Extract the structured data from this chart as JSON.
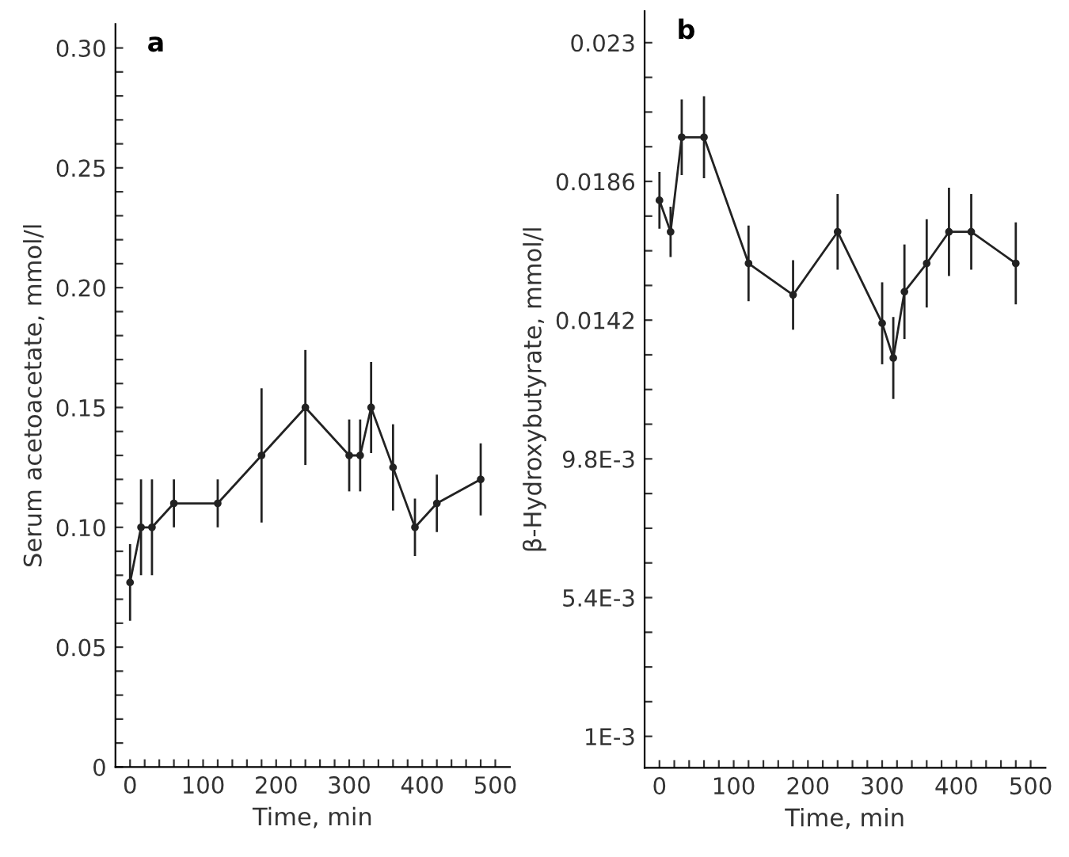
{
  "chart_data": [
    {
      "type": "line",
      "title": "a",
      "xlabel": "Time, min",
      "ylabel": "Serum acetoacetate, mmol/l",
      "marker": "circle",
      "line_style": "solid",
      "grid": false,
      "legend": false,
      "x": [
        0,
        15,
        30,
        60,
        120,
        180,
        240,
        300,
        315,
        330,
        360,
        390,
        420,
        480
      ],
      "series": [
        {
          "color": "#222222",
          "values": [
            0.077,
            0.1,
            0.1,
            0.11,
            0.11,
            0.13,
            0.15,
            0.13,
            0.13,
            0.15,
            0.125,
            0.1,
            0.11,
            0.12
          ],
          "errors": [
            0.016,
            0.02,
            0.02,
            0.01,
            0.01,
            0.028,
            0.024,
            0.015,
            0.015,
            0.019,
            0.018,
            0.012,
            0.012,
            0.015
          ]
        }
      ],
      "xlim": [
        -20,
        520
      ],
      "ylim": [
        0,
        0.31
      ],
      "xticks": [
        0,
        {
          "value": 20,
          "label": null
        },
        {
          "value": 40,
          "label": null
        },
        {
          "value": 60,
          "label": null
        },
        {
          "value": 80,
          "label": null
        },
        100,
        {
          "value": 120,
          "label": null
        },
        {
          "value": 140,
          "label": null
        },
        {
          "value": 160,
          "label": null
        },
        {
          "value": 180,
          "label": null
        },
        200,
        {
          "value": 220,
          "label": null
        },
        {
          "value": 240,
          "label": null
        },
        {
          "value": 260,
          "label": null
        },
        {
          "value": 280,
          "label": null
        },
        300,
        {
          "value": 320,
          "label": null
        },
        {
          "value": 340,
          "label": null
        },
        {
          "value": 360,
          "label": null
        },
        {
          "value": 380,
          "label": null
        },
        400,
        {
          "value": 420,
          "label": null
        },
        {
          "value": 440,
          "label": null
        },
        {
          "value": 460,
          "label": null
        },
        {
          "value": 480,
          "label": null
        },
        500
      ],
      "yticks": [
        0,
        {
          "value": 0.01,
          "label": null
        },
        {
          "value": 0.02,
          "label": null
        },
        {
          "value": 0.03,
          "label": null
        },
        {
          "value": 0.04,
          "label": null
        },
        {
          "value": 0.05,
          "label": "0.05"
        },
        {
          "value": 0.06,
          "label": null
        },
        {
          "value": 0.07,
          "label": null
        },
        {
          "value": 0.08,
          "label": null
        },
        {
          "value": 0.09,
          "label": null
        },
        {
          "value": 0.1,
          "label": "0.10"
        },
        {
          "value": 0.11,
          "label": null
        },
        {
          "value": 0.12,
          "label": null
        },
        {
          "value": 0.13,
          "label": null
        },
        {
          "value": 0.14,
          "label": null
        },
        {
          "value": 0.15,
          "label": "0.15"
        },
        {
          "value": 0.16,
          "label": null
        },
        {
          "value": 0.17,
          "label": null
        },
        {
          "value": 0.18,
          "label": null
        },
        {
          "value": 0.19,
          "label": null
        },
        {
          "value": 0.2,
          "label": "0.20"
        },
        {
          "value": 0.21,
          "label": null
        },
        {
          "value": 0.22,
          "label": null
        },
        {
          "value": 0.23,
          "label": null
        },
        {
          "value": 0.24,
          "label": null
        },
        {
          "value": 0.25,
          "label": "0.25"
        },
        {
          "value": 0.26,
          "label": null
        },
        {
          "value": 0.27,
          "label": null
        },
        {
          "value": 0.28,
          "label": null
        },
        {
          "value": 0.29,
          "label": null
        },
        {
          "value": 0.3,
          "label": "0.30"
        }
      ]
    },
    {
      "type": "line",
      "title": "b",
      "xlabel": "Time, min",
      "ylabel": "β-Hydroxybutyrate, mmol/l",
      "marker": "circle",
      "line_style": "solid",
      "grid": false,
      "legend": false,
      "x": [
        0,
        15,
        30,
        60,
        120,
        180,
        240,
        300,
        315,
        330,
        360,
        390,
        420,
        480
      ],
      "series": [
        {
          "color": "#222222",
          "values": [
            0.018,
            0.017,
            0.02,
            0.02,
            0.016,
            0.015,
            0.017,
            0.0141,
            0.013,
            0.0151,
            0.016,
            0.017,
            0.017,
            0.016
          ],
          "errors": [
            0.0009,
            0.0008,
            0.0012,
            0.0013,
            0.0012,
            0.0011,
            0.0012,
            0.0013,
            0.0013,
            0.0015,
            0.0014,
            0.0014,
            0.0012,
            0.0013
          ]
        }
      ],
      "xlim": [
        -20,
        520
      ],
      "ylim": [
        0,
        0.024
      ],
      "xticks": [
        0,
        {
          "value": 20,
          "label": null
        },
        {
          "value": 40,
          "label": null
        },
        {
          "value": 60,
          "label": null
        },
        {
          "value": 80,
          "label": null
        },
        100,
        {
          "value": 120,
          "label": null
        },
        {
          "value": 140,
          "label": null
        },
        {
          "value": 160,
          "label": null
        },
        {
          "value": 180,
          "label": null
        },
        200,
        {
          "value": 220,
          "label": null
        },
        {
          "value": 240,
          "label": null
        },
        {
          "value": 260,
          "label": null
        },
        {
          "value": 280,
          "label": null
        },
        300,
        {
          "value": 320,
          "label": null
        },
        {
          "value": 340,
          "label": null
        },
        {
          "value": 360,
          "label": null
        },
        {
          "value": 380,
          "label": null
        },
        400,
        {
          "value": 420,
          "label": null
        },
        {
          "value": 440,
          "label": null
        },
        {
          "value": 460,
          "label": null
        },
        {
          "value": 480,
          "label": null
        },
        500
      ],
      "yticks": [
        {
          "value": 0.001,
          "label": "1E-3"
        },
        {
          "value": 0.0021,
          "label": null
        },
        {
          "value": 0.0032,
          "label": null
        },
        {
          "value": 0.0043,
          "label": null
        },
        {
          "value": 0.0054,
          "label": "5.4E-3"
        },
        {
          "value": 0.0065,
          "label": null
        },
        {
          "value": 0.0076,
          "label": null
        },
        {
          "value": 0.0087,
          "label": null
        },
        {
          "value": 0.0098,
          "label": "9.8E-3"
        },
        {
          "value": 0.0109,
          "label": null
        },
        {
          "value": 0.012,
          "label": null
        },
        {
          "value": 0.0131,
          "label": null
        },
        0.0142,
        {
          "value": 0.0153,
          "label": null
        },
        {
          "value": 0.0164,
          "label": null
        },
        {
          "value": 0.0175,
          "label": null
        },
        0.0186,
        {
          "value": 0.0197,
          "label": null
        },
        {
          "value": 0.0208,
          "label": null
        },
        {
          "value": 0.0219,
          "label": null
        },
        0.023
      ]
    }
  ]
}
